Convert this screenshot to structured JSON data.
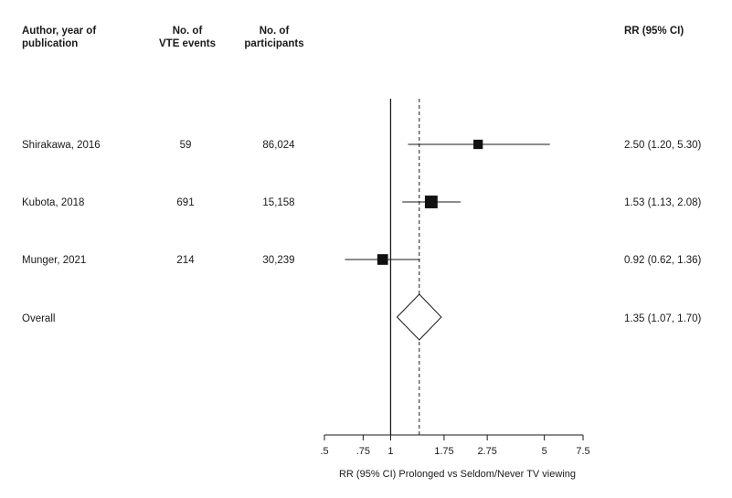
{
  "headers": {
    "study": "Author, year of\npublication",
    "events": "No. of\nVTE events",
    "participants": "No. of\nparticipants",
    "rr": "RR (95% CI)"
  },
  "rows": [
    {
      "study": "Shirakawa, 2016",
      "events": "59",
      "participants": "86,024",
      "rr_text": "2.50 (1.20, 5.30)"
    },
    {
      "study": "Kubota, 2018",
      "events": "691",
      "participants": "15,158",
      "rr_text": "1.53 (1.13, 2.08)"
    },
    {
      "study": "Munger, 2021",
      "events": "214",
      "participants": "30,239",
      "rr_text": "0.92 (0.62, 1.36)"
    },
    {
      "study": "Overall",
      "events": "",
      "participants": "",
      "rr_text": "1.35 (1.07, 1.70)"
    }
  ],
  "chart_data": {
    "type": "forest",
    "xlabel": "RR (95% CI) Prolonged vs Seldom/Never TV viewing",
    "x_scale": "log",
    "xlim": [
      0.5,
      7.5
    ],
    "x_ticks": [
      {
        "value": 0.5,
        "label": ".5"
      },
      {
        "value": 0.75,
        "label": ".75"
      },
      {
        "value": 1,
        "label": "1"
      },
      {
        "value": 1.75,
        "label": "1.75"
      },
      {
        "value": 2.75,
        "label": "2.75"
      },
      {
        "value": 5,
        "label": "5"
      },
      {
        "value": 7.5,
        "label": "7.5"
      }
    ],
    "null_line": 1,
    "pooled_line": 1.35,
    "studies": [
      {
        "name": "Shirakawa, 2016",
        "rr": 2.5,
        "lo": 1.2,
        "hi": 5.3,
        "weight": 0.2
      },
      {
        "name": "Kubota, 2018",
        "rr": 1.53,
        "lo": 1.13,
        "hi": 2.08,
        "weight": 0.5
      },
      {
        "name": "Munger, 2021",
        "rr": 0.92,
        "lo": 0.62,
        "hi": 1.36,
        "weight": 0.3
      }
    ],
    "overall": {
      "name": "Overall",
      "rr": 1.35,
      "lo": 1.07,
      "hi": 1.7
    }
  }
}
